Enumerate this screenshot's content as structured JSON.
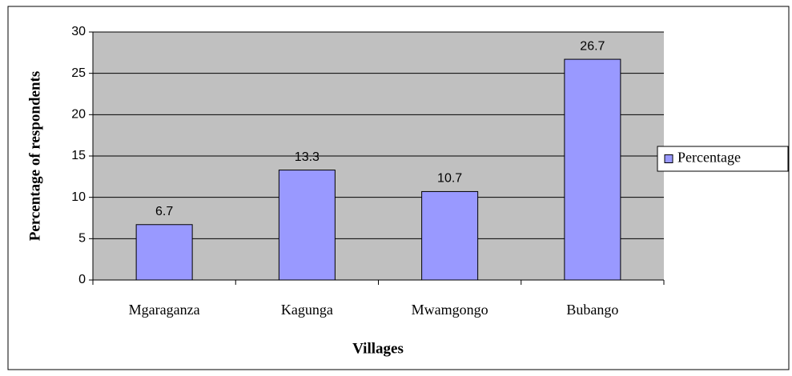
{
  "chart_data": {
    "type": "bar",
    "x_label": "Villages",
    "y_label": "Percentage of respondents",
    "categories": [
      "Mgaraganza",
      "Kagunga",
      "Mwamgongo",
      "Bubango"
    ],
    "series": [
      {
        "name": "Percentage",
        "color": "#9999ff",
        "values": [
          6.7,
          13.3,
          10.7,
          26.7
        ]
      }
    ],
    "ylim": [
      0,
      30
    ],
    "yticks": [
      0,
      5,
      10,
      15,
      20,
      25,
      30
    ],
    "grid": true,
    "legend": "right"
  }
}
